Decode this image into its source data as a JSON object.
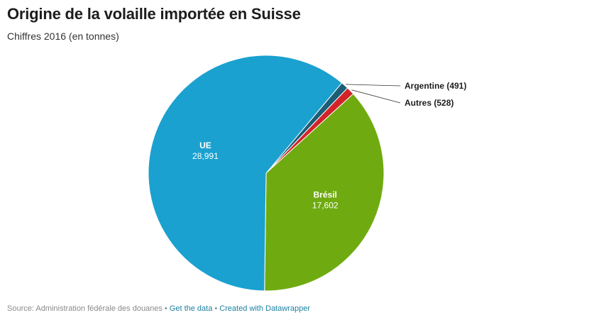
{
  "header": {
    "title": "Origine de la volaille importée en Suisse",
    "subtitle": "Chiffres 2016 (en tonnes)"
  },
  "chart_data": {
    "type": "pie",
    "title": "Origine de la volaille importée en Suisse",
    "subtitle": "Chiffres 2016 (en tonnes)",
    "slices": [
      {
        "name": "Argentine",
        "value": 491,
        "label": "Argentine (491)",
        "color": "#1b5e76",
        "label_style": "outside"
      },
      {
        "name": "Autres",
        "value": 528,
        "label": "Autres (528)",
        "color": "#d32329",
        "label_style": "outside"
      },
      {
        "name": "Brésil",
        "value": 17602,
        "label": "17,602",
        "color": "#6fab10",
        "label_style": "inside"
      },
      {
        "name": "UE",
        "value": 28991,
        "label": "28,991",
        "color": "#1aa1cf",
        "label_style": "inside"
      }
    ]
  },
  "footer": {
    "source": "Source: Administration fédérale des douanes",
    "separator": "•",
    "get_data": "Get the data",
    "created_with": "Created with Datawrapper"
  }
}
